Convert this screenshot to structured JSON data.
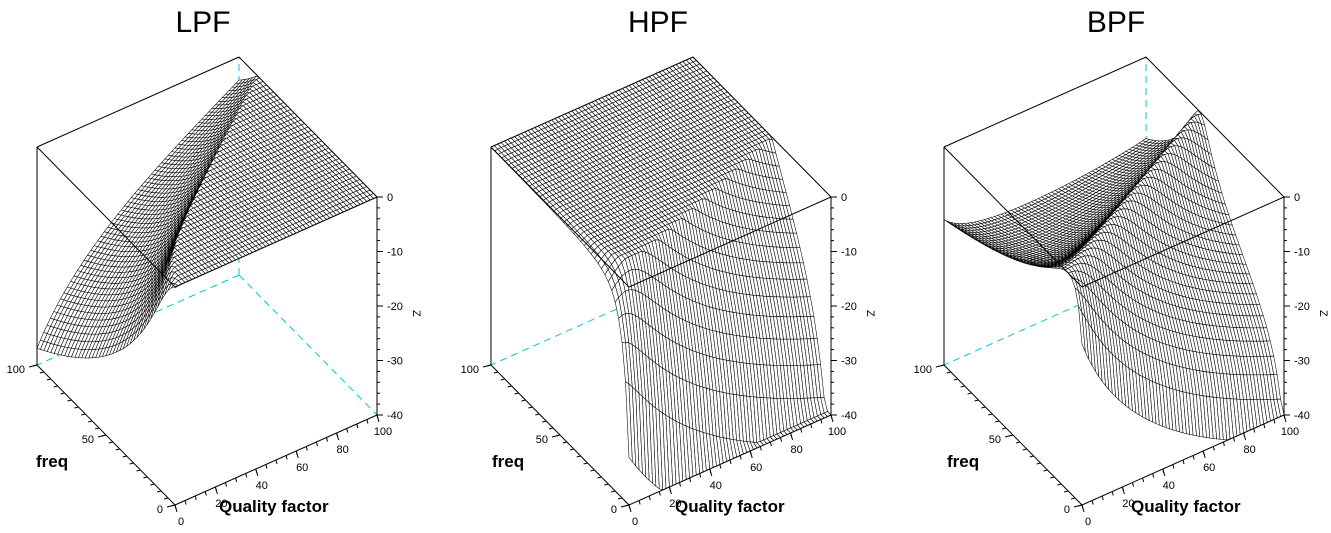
{
  "chart_data": [
    {
      "type": "surface",
      "title": "LPF",
      "filter": "lpf",
      "xlabel": "Quality factor",
      "ylabel": "freq",
      "zlabel": "Z",
      "x_ticks": [
        "0",
        "20",
        "40",
        "60",
        "80",
        "100"
      ],
      "y_ticks": [
        "0",
        "50",
        "100"
      ],
      "z_ticks": [
        "0",
        "-10",
        "-20",
        "-30",
        "-40"
      ],
      "xlim": [
        0,
        100
      ],
      "ylim": [
        0,
        100
      ],
      "zlim": [
        -40,
        0
      ]
    },
    {
      "type": "surface",
      "title": "HPF",
      "filter": "hpf",
      "xlabel": "Quality factor",
      "ylabel": "freq",
      "zlabel": "Z",
      "x_ticks": [
        "0",
        "20",
        "40",
        "60",
        "80",
        "100"
      ],
      "y_ticks": [
        "0",
        "50",
        "100"
      ],
      "z_ticks": [
        "0",
        "-10",
        "-20",
        "-30",
        "-40"
      ],
      "xlim": [
        0,
        100
      ],
      "ylim": [
        0,
        100
      ],
      "zlim": [
        -40,
        0
      ]
    },
    {
      "type": "surface",
      "title": "BPF",
      "filter": "bpf",
      "xlabel": "Quality factor",
      "ylabel": "freq",
      "zlabel": "Z",
      "x_ticks": [
        "0",
        "20",
        "40",
        "60",
        "80",
        "100"
      ],
      "y_ticks": [
        "0",
        "50",
        "100"
      ],
      "z_ticks": [
        "0",
        "-10",
        "-20",
        "-30",
        "-40"
      ],
      "xlim": [
        0,
        100
      ],
      "ylim": [
        0,
        100
      ],
      "zlim": [
        -40,
        0
      ]
    }
  ],
  "colors": {
    "box": "#000000",
    "hidden_edge": "#00c8d8",
    "mesh": "#000000",
    "surface": "#ffffff"
  }
}
